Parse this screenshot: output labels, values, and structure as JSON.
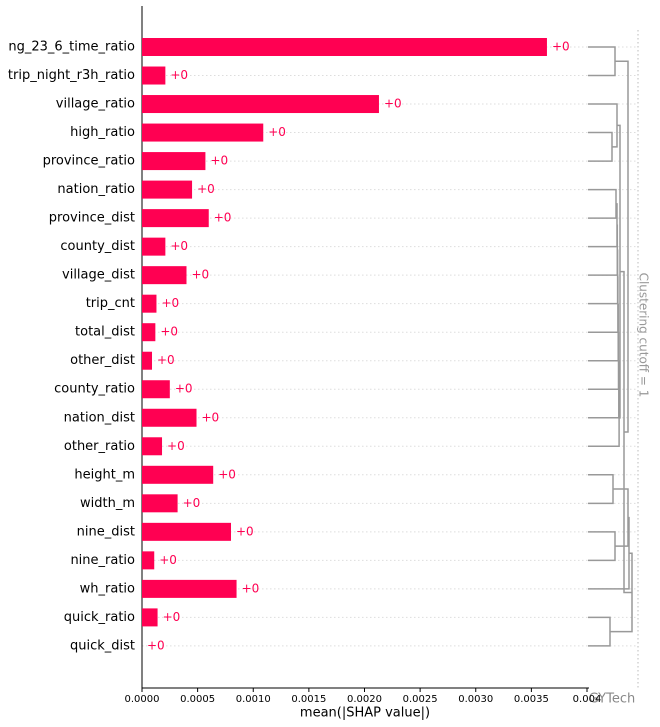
{
  "chart_data": {
    "type": "bar",
    "orientation": "horizontal",
    "xlabel": "mean(|SHAP value|)",
    "categories": [
      "ng_23_6_time_ratio",
      "trip_night_r3h_ratio",
      "village_ratio",
      "high_ratio",
      "province_ratio",
      "nation_ratio",
      "province_dist",
      "county_dist",
      "village_dist",
      "trip_cnt",
      "total_dist",
      "other_dist",
      "county_ratio",
      "nation_dist",
      "other_ratio",
      "height_m",
      "width_m",
      "nine_dist",
      "nine_ratio",
      "wh_ratio",
      "quick_ratio",
      "quick_dist"
    ],
    "values": [
      0.00364,
      0.00021,
      0.00213,
      0.00109,
      0.00057,
      0.00045,
      0.0006,
      0.00021,
      0.0004,
      0.00013,
      0.00012,
      9e-05,
      0.00025,
      0.00049,
      0.00018,
      0.00064,
      0.00032,
      0.0008,
      0.00011,
      0.00085,
      0.00014,
      0
    ],
    "value_labels": [
      "+0",
      "+0",
      "+0",
      "+0",
      "+0",
      "+0",
      "+0",
      "+0",
      "+0",
      "+0",
      "+0",
      "+0",
      "+0",
      "+0",
      "+0",
      "+0",
      "+0",
      "+0",
      "+0",
      "+0",
      "+0",
      "+0"
    ],
    "color": "#ff0052",
    "xlim": [
      0,
      0.004
    ],
    "xticks": [
      {
        "value": 0,
        "label": "0.0000"
      },
      {
        "value": 0.0005,
        "label": "0.0005"
      },
      {
        "value": 0.001,
        "label": "0.0010"
      },
      {
        "value": 0.0015,
        "label": "0.0015"
      },
      {
        "value": 0.002,
        "label": "0.0020"
      },
      {
        "value": 0.0025,
        "label": "0.0025"
      },
      {
        "value": 0.003,
        "label": "0.0030"
      },
      {
        "value": 0.0035,
        "label": "0.0035"
      },
      {
        "value": 0.004,
        "label": "0.004"
      }
    ],
    "cutoff_label": "Clustering cutoff = 1",
    "watermark": "GYTech"
  }
}
